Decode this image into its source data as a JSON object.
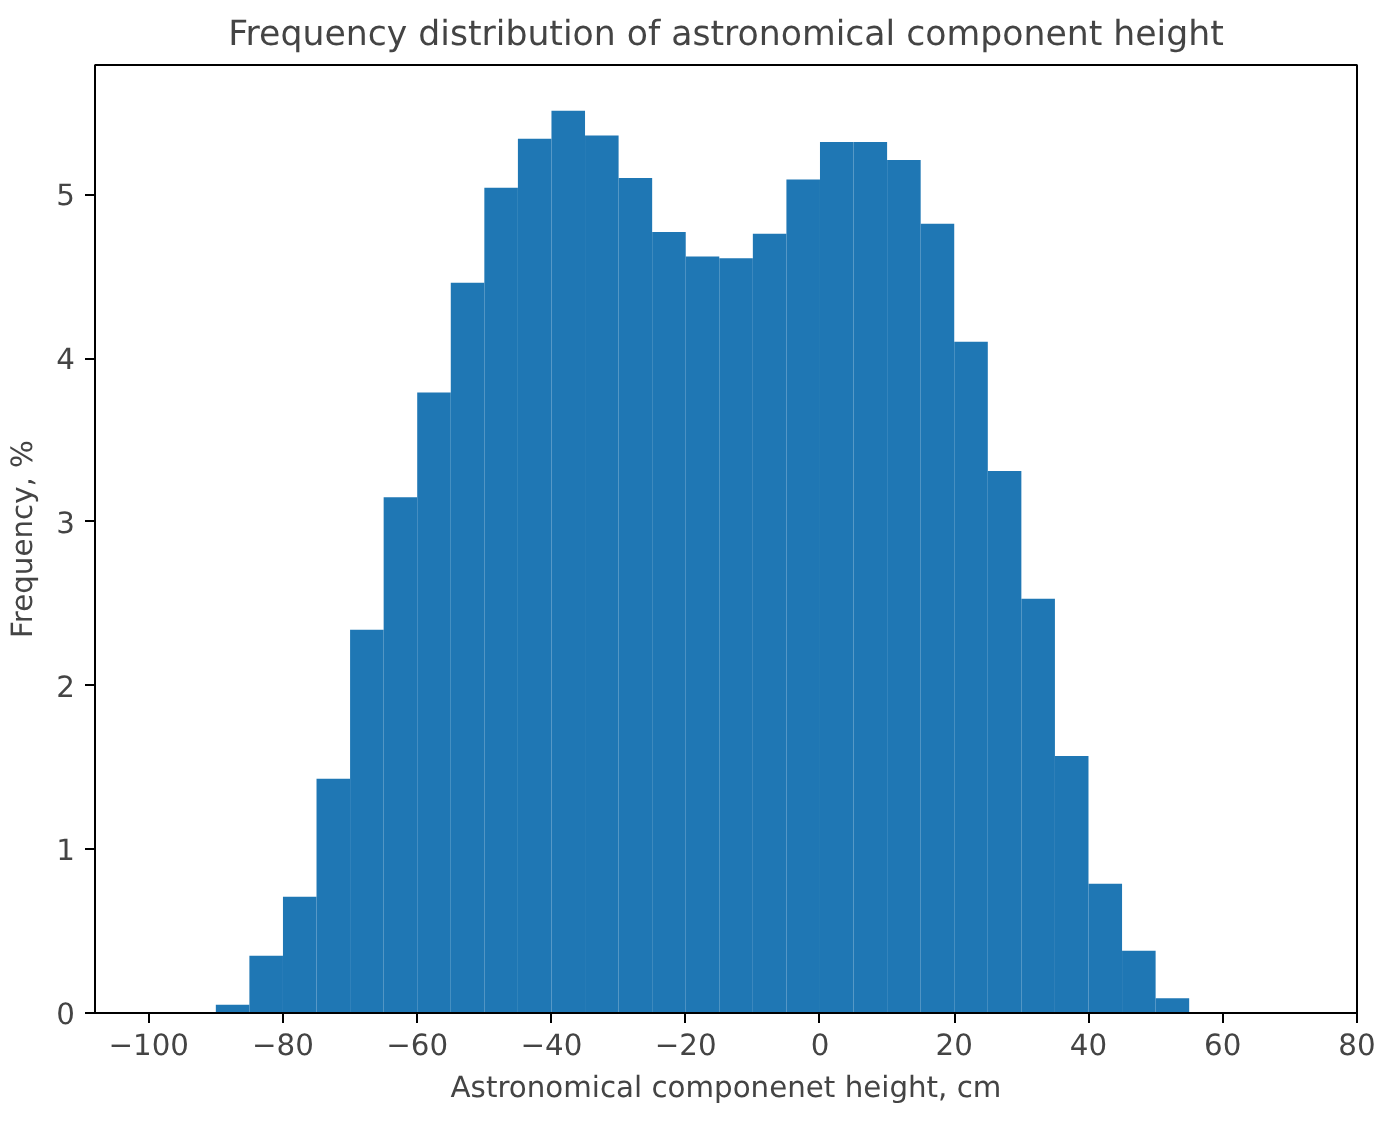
{
  "chart_data": {
    "type": "histogram",
    "title": "Frequency distribution of astronomical component height",
    "xlabel": "Astronomical componenet height, cm",
    "ylabel": "Frequency, %",
    "bins": [
      -90,
      -85,
      -80,
      -75,
      -70,
      -65,
      -60,
      -55,
      -50,
      -45,
      -40,
      -35,
      -30,
      -25,
      -20,
      -15,
      -10,
      -5,
      0,
      5,
      10,
      15,
      20,
      25,
      30,
      35,
      40,
      45,
      50,
      55
    ],
    "values": [
      0.05,
      0.35,
      0.71,
      1.43,
      2.34,
      3.15,
      3.79,
      4.46,
      5.04,
      5.34,
      5.51,
      5.36,
      5.1,
      4.77,
      4.62,
      4.61,
      4.76,
      5.09,
      5.32,
      5.32,
      5.21,
      4.82,
      4.1,
      3.31,
      2.53,
      1.57,
      0.79,
      0.38,
      0.09
    ],
    "color": "#1f77b4",
    "xlim": [
      -108,
      80
    ],
    "ylim": [
      0,
      5.79
    ],
    "xticks": [
      -100,
      -80,
      -60,
      -40,
      -20,
      0,
      20,
      40,
      60,
      80
    ],
    "yticks": [
      0,
      1,
      2,
      3,
      4,
      5
    ],
    "grid": false
  }
}
